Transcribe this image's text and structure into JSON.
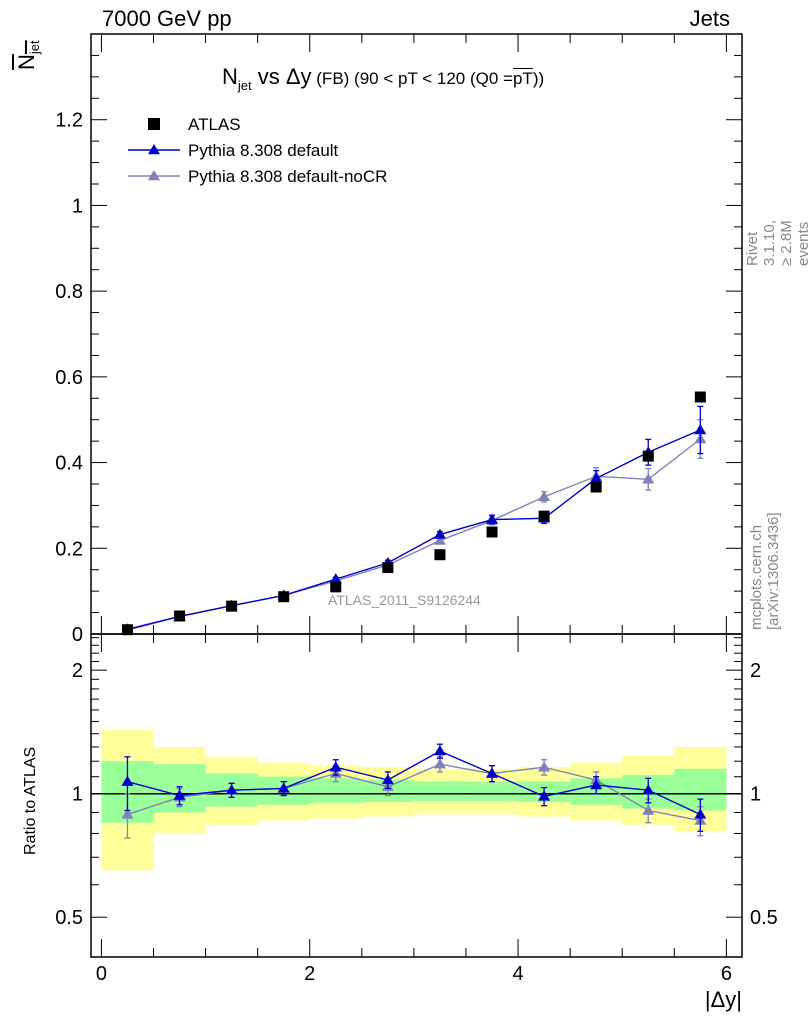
{
  "header": {
    "left": "7000 GeV pp",
    "right": "Jets"
  },
  "side_text": {
    "rivet": "Rivet 3.1.10, ≥ 2.8M events",
    "mcplots": "mcplots.cern.ch [arXiv:1306.3436]"
  },
  "title": {
    "main": "N",
    "sub": "jet",
    "vs": " vs Δy",
    "detail": " (FB) (90 < pT < 120 (Q0 =",
    "overline": "pT",
    "close": "))"
  },
  "y_label": {
    "text": "N",
    "sub": "jet"
  },
  "ratio_label": "Ratio to ATLAS",
  "x_label": "|Δy|",
  "analysis_tag": "ATLAS_2011_S9126244",
  "legend": [
    {
      "label": "ATLAS",
      "color": "#000000",
      "marker": "square"
    },
    {
      "label": "Pythia 8.308 default",
      "color": "#0000cc",
      "marker": "triangle"
    },
    {
      "label": "Pythia 8.308 default-noCR",
      "color": "#8080bb",
      "marker": "triangle"
    }
  ],
  "chart_data": [
    {
      "type": "scatter",
      "panel": "main",
      "x": [
        0.25,
        0.75,
        1.25,
        1.75,
        2.25,
        2.75,
        3.25,
        3.75,
        4.25,
        4.75,
        5.25,
        5.75
      ],
      "xlim": [
        -0.1,
        6.15
      ],
      "ylim": [
        0,
        1.4
      ],
      "yticks": [
        0,
        0.2,
        0.4,
        0.6,
        0.8,
        1,
        1.2
      ],
      "ytick_labels": [
        "0",
        "0.2",
        "0.4",
        "0.6",
        "0.8",
        "1",
        "1.2"
      ],
      "series": [
        {
          "name": "ATLAS",
          "values": [
            0.01,
            0.042,
            0.065,
            0.087,
            0.11,
            0.155,
            0.185,
            0.238,
            0.275,
            0.343,
            0.415,
            0.553
          ],
          "errors": [
            0.001,
            0.002,
            0.002,
            0.003,
            0.004,
            0.005,
            0.005,
            0.006,
            0.008,
            0.01,
            0.012,
            0.015
          ]
        },
        {
          "name": "Pythia 8.308 default",
          "values": [
            0.011,
            0.041,
            0.066,
            0.09,
            0.128,
            0.166,
            0.232,
            0.267,
            0.27,
            0.363,
            0.424,
            0.476
          ],
          "errors": [
            0.002,
            0.002,
            0.003,
            0.003,
            0.004,
            0.006,
            0.007,
            0.01,
            0.012,
            0.018,
            0.03,
            0.055
          ]
        },
        {
          "name": "Pythia 8.308 default-noCR",
          "values": [
            0.009,
            0.041,
            0.066,
            0.09,
            0.124,
            0.161,
            0.218,
            0.265,
            0.32,
            0.368,
            0.361,
            0.455
          ],
          "errors": [
            0.002,
            0.002,
            0.003,
            0.003,
            0.004,
            0.006,
            0.007,
            0.01,
            0.012,
            0.02,
            0.025,
            0.045
          ]
        }
      ]
    },
    {
      "type": "scatter",
      "panel": "ratio",
      "x": [
        0.25,
        0.75,
        1.25,
        1.75,
        2.25,
        2.75,
        3.25,
        3.75,
        4.25,
        4.75,
        5.25,
        5.75
      ],
      "bin_edges": [
        0,
        0.5,
        1,
        1.5,
        2,
        2.5,
        3,
        3.5,
        4,
        4.5,
        5,
        5.5,
        6
      ],
      "xlim": [
        -0.1,
        6.15
      ],
      "xticks": [
        0,
        2,
        4,
        6
      ],
      "xtick_labels": [
        "0",
        "2",
        "4",
        "6"
      ],
      "ylim": [
        0.4,
        2.45
      ],
      "yscale": "log",
      "yticks": [
        0.5,
        1,
        2
      ],
      "ytick_labels": [
        "0.5",
        "1",
        "2"
      ],
      "bands": {
        "green_lo": [
          0.85,
          0.9,
          0.93,
          0.94,
          0.95,
          0.955,
          0.96,
          0.96,
          0.955,
          0.94,
          0.92,
          0.91
        ],
        "green_hi": [
          1.2,
          1.18,
          1.12,
          1.1,
          1.09,
          1.08,
          1.07,
          1.07,
          1.07,
          1.09,
          1.11,
          1.15
        ],
        "yellow_lo": [
          0.65,
          0.8,
          0.84,
          0.86,
          0.87,
          0.88,
          0.89,
          0.89,
          0.88,
          0.86,
          0.84,
          0.81
        ],
        "yellow_hi": [
          1.43,
          1.3,
          1.23,
          1.19,
          1.17,
          1.16,
          1.15,
          1.15,
          1.16,
          1.19,
          1.24,
          1.3
        ],
        "green_color": "#99ff99",
        "yellow_color": "#ffff99"
      },
      "series": [
        {
          "name": "Pythia 8.308 default",
          "values": [
            1.07,
            0.99,
            1.02,
            1.03,
            1.16,
            1.08,
            1.27,
            1.12,
            0.985,
            1.05,
            1.02,
            0.89
          ],
          "errors": [
            0.16,
            0.05,
            0.04,
            0.04,
            0.05,
            0.05,
            0.05,
            0.05,
            0.05,
            0.05,
            0.07,
            0.08
          ]
        },
        {
          "name": "Pythia 8.308 default-noCR",
          "values": [
            0.89,
            0.98,
            1.02,
            1.03,
            1.12,
            1.04,
            1.18,
            1.12,
            1.16,
            1.08,
            0.91,
            0.86
          ],
          "errors": [
            0.11,
            0.05,
            0.04,
            0.04,
            0.05,
            0.05,
            0.05,
            0.05,
            0.05,
            0.05,
            0.06,
            0.07
          ]
        }
      ]
    }
  ]
}
